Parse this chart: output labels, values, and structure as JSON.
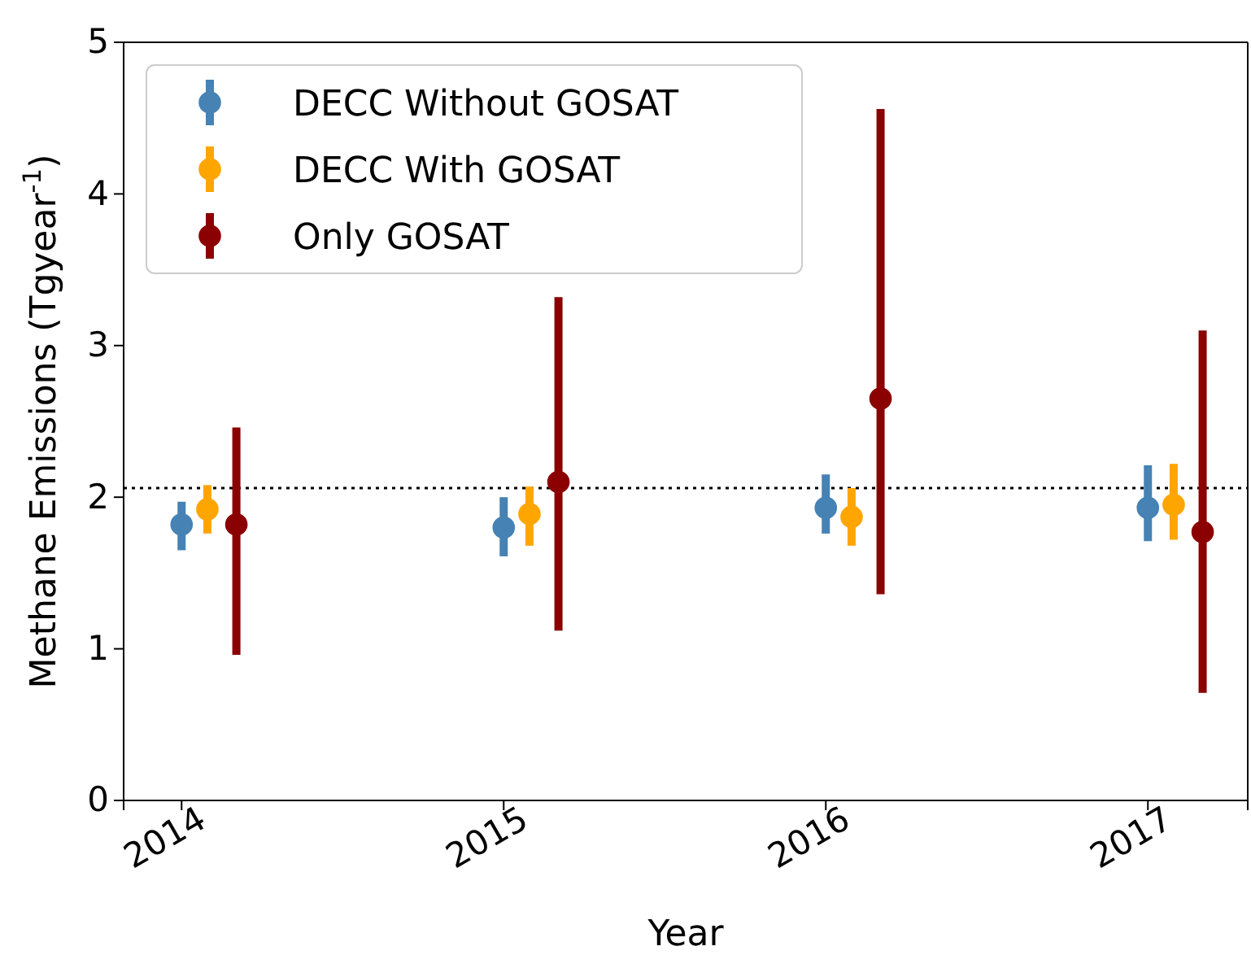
{
  "chart_data": {
    "type": "scatter",
    "xlabel": "Year",
    "ylabel": "Methane Emissions (Tgyear$^{-1}$)",
    "xlim": [
      2013.82,
      2017.31
    ],
    "xticks": [
      2014,
      2015,
      2016,
      2017
    ],
    "ylim": [
      0,
      5
    ],
    "yticks": [
      0,
      1,
      2,
      3,
      4,
      5
    ],
    "marker": "circle",
    "legend": "top left",
    "grid": false,
    "series": [
      {
        "name": "DECC Without GOSAT",
        "color": "#4682b4",
        "x": [
          2014,
          2015,
          2016,
          2017
        ],
        "values": [
          1.82,
          1.8,
          1.93,
          1.93
        ],
        "errors": [
          [
            1.65,
            1.97
          ],
          [
            1.61,
            2.0
          ],
          [
            1.76,
            2.15
          ],
          [
            1.71,
            2.21
          ]
        ]
      },
      {
        "name": "DECC With GOSAT",
        "color": "#ffa500",
        "x": [
          2014.08,
          2015.08,
          2016.08,
          2017.08
        ],
        "values": [
          1.92,
          1.89,
          1.87,
          1.95
        ],
        "errors": [
          [
            1.76,
            2.08
          ],
          [
            1.68,
            2.07
          ],
          [
            1.68,
            2.06
          ],
          [
            1.72,
            2.22
          ]
        ]
      },
      {
        "name": "Only GOSAT",
        "color": "#8b0000",
        "x": [
          2014.17,
          2015.17,
          2016.17,
          2017.17
        ],
        "values": [
          1.82,
          2.1,
          2.65,
          1.77
        ],
        "errors": [
          [
            0.96,
            2.46
          ],
          [
            1.12,
            3.32
          ],
          [
            1.36,
            4.56
          ],
          [
            0.71,
            3.1
          ]
        ]
      }
    ],
    "ref_lines": [
      {
        "axis": "y",
        "value": 2.06,
        "color": "#000000",
        "line_style": "dotted"
      }
    ]
  }
}
